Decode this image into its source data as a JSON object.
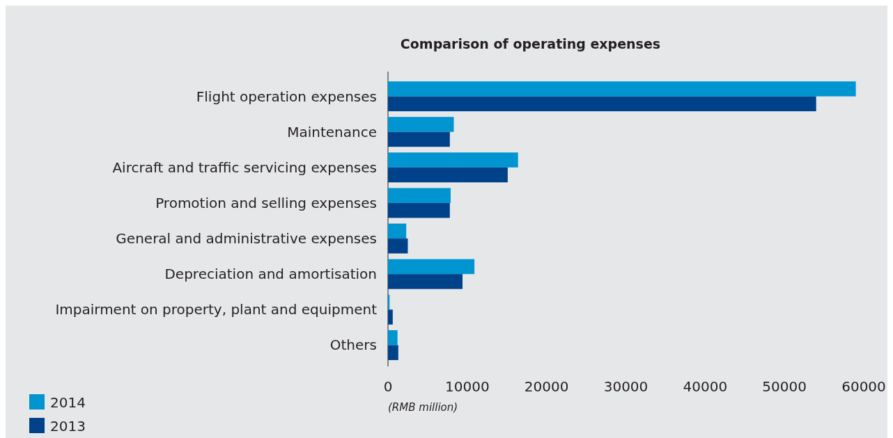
{
  "chart_data": {
    "type": "bar",
    "orientation": "horizontal",
    "title": "Comparison of operating expenses",
    "xlabel": "(RMB million)",
    "categories": [
      "Flight operation expenses",
      "Maintenance",
      "Aircraft and traffic servicing expenses",
      "Promotion and selling expenses",
      "General and administrative expenses",
      "Depreciation and amortisation",
      "Impairment on property, plant and equipment",
      "Others"
    ],
    "series": [
      {
        "name": "2014",
        "color": "#0095d0",
        "values": [
          59000,
          8300,
          16400,
          7900,
          2300,
          10900,
          200,
          1200
        ]
      },
      {
        "name": "2013",
        "color": "#00428a",
        "values": [
          54000,
          7800,
          15100,
          7800,
          2500,
          9400,
          600,
          1300
        ]
      }
    ],
    "xlim": [
      0,
      60000
    ],
    "xticks": [
      0,
      10000,
      20000,
      30000,
      40000,
      50000,
      60000
    ],
    "grid": false,
    "legend": "bottom left"
  }
}
